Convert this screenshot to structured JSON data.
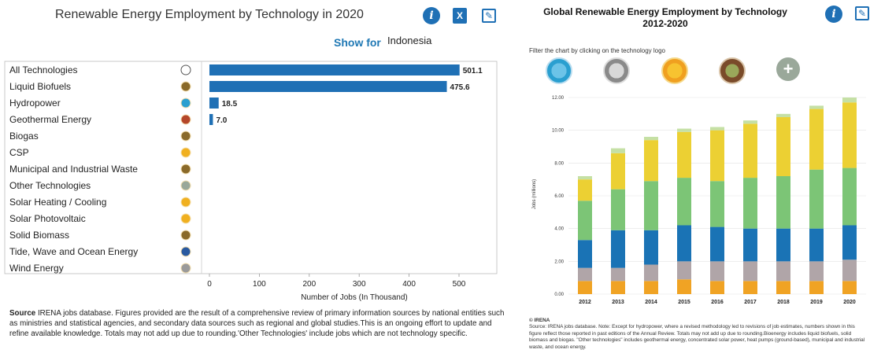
{
  "left": {
    "title": "Renewable Energy Employment by Technology in 2020",
    "show_for_label": "Show for",
    "show_for_value": "Indonesia",
    "source_bold": "Source",
    "source_text": " IRENA jobs database. Figures provided are the result of a comprehensive review of primary information sources by national entities such as ministries and statistical agencies, and secondary data sources such as regional and global studies.This is an ongoing effort to update and refine available knowledge. Totals may not add up due to rounding.'Other Technologies' include jobs which are not technology specific."
  },
  "right": {
    "title_line1": "Global Renewable Energy Employment by Technology",
    "title_line2": "2012-2020",
    "filter_text": "Filter the chart by clicking on the technology logo",
    "source_head": "© IRENA",
    "source_text": "Source: IRENA jobs database. Note: Except for hydropower, where a revised methodology led to revisions of job estimates, numbers shown in this figure reflect those reported in past editions of the Annual Review. Totals may not add up due to rounding.Bioenergy includes liquid biofuels, solid biomass and biogas. \"Other technologies\" includes geothermal energy, concentrated solar power, heat pumps (ground-based), municipal and industrial waste, and ocean energy."
  },
  "colors": {
    "bar": "#1f70b5",
    "accent": "#1f78b4",
    "stack": [
      "#f0a324",
      "#b0a5a8",
      "#1a73b5",
      "#7cc576",
      "#ecd033",
      "#c5e0a5"
    ]
  },
  "chart_data": [
    {
      "type": "bar",
      "orientation": "horizontal",
      "categories": [
        "All Technologies",
        "Liquid Biofuels",
        "Hydropower",
        "Geothermal Energy",
        "Biogas",
        "CSP",
        "Municipal and Industrial Waste",
        "Other Technologies",
        "Solar Heating / Cooling",
        "Solar Photovoltaic",
        "Solid Biomass",
        "Tide, Wave and Ocean Energy",
        "Wind Energy"
      ],
      "values": [
        501.1,
        475.6,
        18.5,
        7.0,
        null,
        null,
        null,
        null,
        null,
        null,
        null,
        null,
        null
      ],
      "value_labels": [
        "501.1",
        "475.6",
        "18.5",
        "7.0",
        "",
        "",
        "",
        "",
        "",
        "",
        "",
        "",
        ""
      ],
      "xlabel": "Number of Jobs (In Thousand)",
      "xticks": [
        "0",
        "100",
        "200",
        "300",
        "400",
        "500"
      ],
      "xlim": [
        0,
        600
      ]
    },
    {
      "type": "bar",
      "stacked": true,
      "categories": [
        "2012",
        "2013",
        "2014",
        "2015",
        "2016",
        "2017",
        "2018",
        "2019",
        "2020"
      ],
      "ylabel": "Jobs (millions)",
      "yticks": [
        "0.00",
        "2.00",
        "4.00",
        "6.00",
        "8.00",
        "10.00",
        "12.00"
      ],
      "ylim": [
        0,
        12
      ],
      "series": [
        {
          "values": [
            0.8,
            0.8,
            0.8,
            0.9,
            0.8,
            0.8,
            0.8,
            0.8,
            0.8
          ]
        },
        {
          "values": [
            0.8,
            0.8,
            1.0,
            1.1,
            1.2,
            1.2,
            1.2,
            1.2,
            1.3
          ]
        },
        {
          "values": [
            1.7,
            2.3,
            2.1,
            2.2,
            2.1,
            2.0,
            2.0,
            2.0,
            2.1
          ]
        },
        {
          "values": [
            2.4,
            2.5,
            3.0,
            2.9,
            2.8,
            3.1,
            3.2,
            3.6,
            3.5
          ]
        },
        {
          "values": [
            1.3,
            2.2,
            2.5,
            2.8,
            3.1,
            3.3,
            3.6,
            3.7,
            4.0
          ]
        },
        {
          "values": [
            0.2,
            0.3,
            0.2,
            0.2,
            0.2,
            0.2,
            0.2,
            0.2,
            0.3
          ]
        }
      ]
    }
  ]
}
